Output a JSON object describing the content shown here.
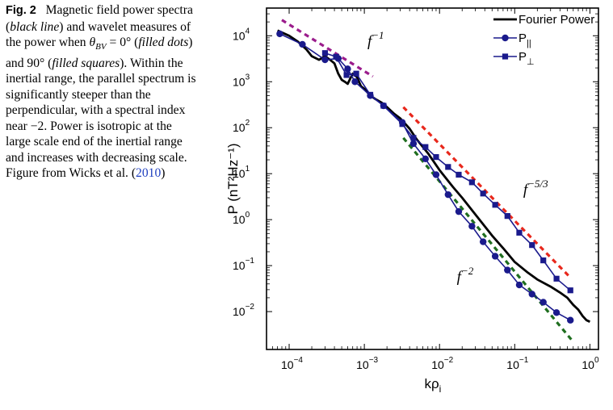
{
  "caption": {
    "label": "Fig. 2",
    "seg1": "Magnetic field power spectra (",
    "black_line": "black line",
    "seg2": ") and wavelet measures of the power when ",
    "theta1": "θ",
    "theta_sub": "BV",
    "theta2": " = 0°",
    "seg3": " (",
    "filled_dots": "filled dots",
    "seg4": ") and 90° (",
    "filled_squares": "filled squares",
    "seg5": "). Within the inertial range, the parallel spectrum is significantly steeper than the perpendicular, with a spectral index near −2. Power is isotropic at the large scale end of the inertial range and increases with decreasing scale. Figure from Wicks et al. (",
    "year": "2010",
    "seg6": ")"
  },
  "colors": {
    "fourier": "#000000",
    "parallel": "#1a1a8c",
    "perp": "#1a1a8c",
    "fit_m1": "#9b1c8c",
    "fit_m53": "#e8281c",
    "fit_m2": "#1f6e1f"
  },
  "chart_data": {
    "type": "line",
    "xscale": "log",
    "yscale": "log",
    "xlim": [
      5e-05,
      1.3
    ],
    "ylim": [
      0.0015,
      40000
    ],
    "xlabel": "kρ",
    "xlabel_sub": "i",
    "ylabel": "P (nT²Hz⁻¹)",
    "x_ticks": [
      {
        "value": 0.0001,
        "base": "10",
        "exp": "−4"
      },
      {
        "value": 0.001,
        "base": "10",
        "exp": "−3"
      },
      {
        "value": 0.01,
        "base": "10",
        "exp": "−2"
      },
      {
        "value": 0.1,
        "base": "10",
        "exp": "−1"
      },
      {
        "value": 1,
        "base": "10",
        "exp": "0"
      }
    ],
    "y_ticks": [
      {
        "value": 0.01,
        "base": "10",
        "exp": "−2"
      },
      {
        "value": 0.1,
        "base": "10",
        "exp": "−1"
      },
      {
        "value": 1,
        "base": "10",
        "exp": "0"
      },
      {
        "value": 10,
        "base": "10",
        "exp": "1"
      },
      {
        "value": 100,
        "base": "10",
        "exp": "2"
      },
      {
        "value": 1000,
        "base": "10",
        "exp": "3"
      },
      {
        "value": 10000,
        "base": "10",
        "exp": "4"
      }
    ],
    "legend": [
      {
        "label": "Fourier Power",
        "sub": "",
        "key": "fourier"
      },
      {
        "label": "P",
        "sub": "||",
        "key": "parallel"
      },
      {
        "label": "P",
        "sub": "⊥",
        "key": "perp"
      }
    ],
    "legend_position": "top-right",
    "series": [
      {
        "name": "Fourier Power",
        "key": "fourier",
        "x": [
          7e-05,
          0.0001,
          0.00013,
          0.00017,
          0.0002,
          0.00025,
          0.0003,
          0.00035,
          0.0004,
          0.00045,
          0.0005,
          0.00055,
          0.0006,
          0.0007,
          0.0008,
          0.0009,
          0.001,
          0.0012,
          0.0014,
          0.0017,
          0.002,
          0.0025,
          0.003,
          0.004,
          0.005,
          0.007,
          0.01,
          0.015,
          0.02,
          0.03,
          0.05,
          0.07,
          0.1,
          0.15,
          0.2,
          0.3,
          0.4,
          0.5,
          0.6,
          0.7,
          0.8,
          0.9,
          1.0
        ],
        "y": [
          13000,
          10000,
          7500,
          5000,
          3600,
          3000,
          3600,
          3000,
          2500,
          1500,
          1100,
          1000,
          900,
          1500,
          1250,
          800,
          700,
          500,
          420,
          350,
          280,
          200,
          160,
          95,
          55,
          28,
          12,
          5.2,
          3.0,
          1.3,
          0.45,
          0.24,
          0.12,
          0.07,
          0.05,
          0.035,
          0.026,
          0.02,
          0.014,
          0.011,
          0.008,
          0.0065,
          0.006
        ]
      },
      {
        "name": "P||",
        "key": "parallel",
        "marker": "circle",
        "x": [
          7.5e-05,
          0.00015,
          0.0003,
          0.00045,
          0.0006,
          0.00075,
          0.0012,
          0.0018,
          0.0032,
          0.0045,
          0.0065,
          0.009,
          0.013,
          0.018,
          0.027,
          0.038,
          0.055,
          0.08,
          0.115,
          0.17,
          0.24,
          0.36,
          0.55
        ],
        "y": [
          11000,
          6500,
          3000,
          3200,
          1900,
          1000,
          500,
          300,
          130,
          45,
          21,
          9.5,
          3.5,
          1.5,
          0.72,
          0.33,
          0.16,
          0.08,
          0.038,
          0.024,
          0.016,
          0.0095,
          0.0065
        ]
      },
      {
        "name": "P⊥",
        "key": "perp",
        "marker": "square",
        "x": [
          0.0003,
          0.00042,
          0.00058,
          0.00078,
          0.0012,
          0.0018,
          0.0032,
          0.0045,
          0.0065,
          0.009,
          0.013,
          0.018,
          0.027,
          0.038,
          0.055,
          0.08,
          0.115,
          0.17,
          0.24,
          0.36,
          0.55
        ],
        "y": [
          4200,
          3500,
          1400,
          1500,
          520,
          300,
          120,
          60,
          38,
          23,
          14,
          9.5,
          6.5,
          3.7,
          2.1,
          1.2,
          0.52,
          0.28,
          0.13,
          0.052,
          0.029
        ]
      }
    ],
    "fits": [
      {
        "name": "f^-1",
        "key": "fit_m1",
        "x": [
          8e-05,
          0.0013
        ],
        "y": [
          22000,
          1300
        ],
        "label": "f",
        "label_exp": "−1",
        "label_at": [
          0.0011,
          6000
        ]
      },
      {
        "name": "f^-5/3",
        "key": "fit_m53",
        "x": [
          0.0033,
          0.55
        ],
        "y": [
          280,
          0.055
        ],
        "label": "f",
        "label_exp": "−5/3",
        "label_at": [
          0.13,
          3.5
        ]
      },
      {
        "name": "f^-2",
        "key": "fit_m2",
        "x": [
          0.0033,
          0.6
        ],
        "y": [
          60,
          0.0022
        ],
        "label": "f",
        "label_exp": "−2",
        "label_at": [
          0.017,
          0.045
        ]
      }
    ]
  }
}
